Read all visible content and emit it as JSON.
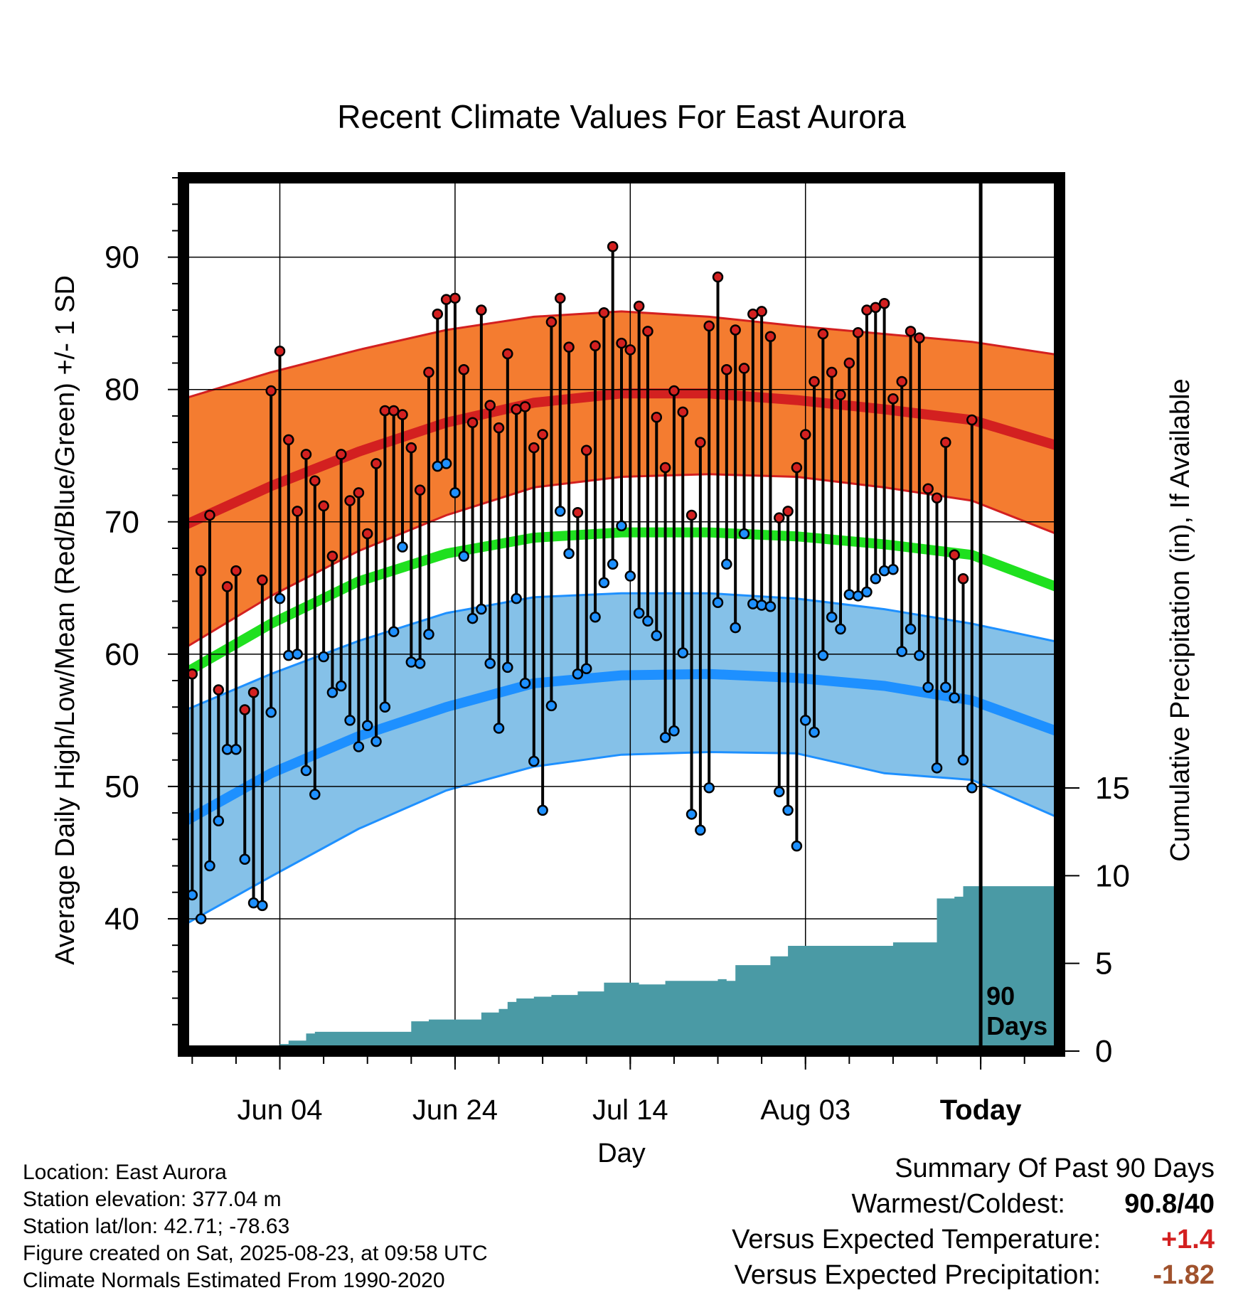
{
  "colors": {
    "high_band": "#f47c30",
    "high_band_edge": "#d32020",
    "high_mean": "#d32020",
    "low_band": "#85c1e8",
    "low_band_edge": "#1e90ff",
    "low_mean": "#1e90ff",
    "mean": "#1fe01f",
    "precip": "#4a9aa5",
    "high_dot": "#d32020",
    "low_dot": "#1e90ff",
    "positive": "#d32020",
    "negative": "#a0522d"
  },
  "chart_data": {
    "type": "line",
    "title": "Recent Climate Values For East Aurora",
    "xlabel": "Day",
    "ylabel": "Average Daily High/Low/Mean (Red/Blue/Green) +/- 1 SD",
    "y2label": "Cumulative Precipitation (in), If Available",
    "x_tick_labels": [
      "Jun 04",
      "Jun 24",
      "Jul 14",
      "Aug 03",
      "Today"
    ],
    "x_tick_days": [
      11,
      31,
      51,
      71,
      91
    ],
    "xlim": [
      0,
      100
    ],
    "ylim": [
      30,
      96
    ],
    "y_ticks": [
      40,
      50,
      60,
      70,
      80,
      90
    ],
    "y2lim": [
      0,
      18.5
    ],
    "y2_ticks": [
      0,
      5,
      10,
      15
    ],
    "today_day": 91,
    "today_label": "90\nDays",
    "grid": true,
    "normals": {
      "days": [
        0,
        10,
        20,
        30,
        40,
        50,
        60,
        70,
        80,
        90,
        100
      ],
      "high_mean": [
        69.7,
        72.7,
        75.3,
        77.5,
        79.0,
        79.7,
        79.7,
        79.2,
        78.5,
        77.7,
        75.7
      ],
      "high_upper": [
        79.3,
        81.3,
        83.0,
        84.5,
        85.5,
        85.9,
        85.5,
        84.8,
        84.2,
        83.6,
        82.6
      ],
      "high_lower": [
        60.4,
        64.4,
        67.8,
        70.5,
        72.6,
        73.4,
        73.6,
        73.4,
        72.6,
        71.6,
        69.0
      ],
      "mean": [
        58.5,
        62.3,
        65.5,
        67.6,
        68.8,
        69.2,
        69.2,
        68.9,
        68.3,
        67.5,
        65.0
      ],
      "low_mean": [
        47.3,
        51.0,
        53.8,
        56.0,
        57.8,
        58.4,
        58.5,
        58.2,
        57.6,
        56.5,
        54.1
      ],
      "low_upper": [
        55.7,
        58.5,
        61.0,
        63.1,
        64.3,
        64.6,
        64.6,
        64.2,
        63.4,
        62.3,
        60.9
      ],
      "low_lower": [
        39.5,
        43.2,
        46.8,
        49.7,
        51.5,
        52.4,
        52.6,
        52.5,
        51.0,
        50.5,
        47.6
      ]
    },
    "series": [
      {
        "name": "High",
        "x": [
          1,
          2,
          3,
          4,
          5,
          6,
          7,
          8,
          9,
          10,
          11,
          12,
          13,
          14,
          15,
          16,
          17,
          18,
          19,
          20,
          21,
          22,
          23,
          24,
          25,
          26,
          27,
          28,
          29,
          30,
          31,
          32,
          33,
          34,
          35,
          36,
          37,
          38,
          39,
          40,
          41,
          42,
          43,
          44,
          45,
          46,
          47,
          48,
          49,
          50,
          51,
          52,
          53,
          54,
          55,
          56,
          57,
          58,
          59,
          60,
          61,
          62,
          63,
          64,
          65,
          66,
          67,
          68,
          69,
          70,
          71,
          72,
          73,
          74,
          75,
          76,
          77,
          78,
          79,
          80,
          81,
          82,
          83,
          84,
          85,
          86,
          87,
          88,
          89,
          90
        ],
        "values": [
          58.5,
          66.3,
          70.5,
          57.3,
          65.1,
          66.3,
          55.8,
          57.1,
          65.6,
          79.9,
          82.9,
          76.2,
          70.8,
          75.1,
          73.1,
          71.2,
          67.4,
          75.1,
          71.6,
          72.2,
          69.1,
          74.4,
          78.4,
          78.4,
          78.1,
          75.6,
          72.4,
          81.3,
          85.7,
          86.8,
          86.9,
          81.5,
          77.5,
          86.0,
          78.8,
          77.1,
          82.7,
          78.5,
          78.7,
          75.6,
          76.6,
          85.1,
          86.9,
          83.2,
          70.7,
          75.4,
          83.3,
          85.8,
          90.8,
          83.5,
          83.0,
          86.3,
          84.4,
          77.9,
          74.1,
          79.9,
          78.3,
          70.5,
          76.0,
          84.8,
          88.5,
          81.5,
          84.5,
          81.6,
          85.7,
          85.9,
          84.0,
          70.3,
          70.8,
          74.1,
          76.6,
          80.6,
          84.2,
          81.3,
          79.6,
          82.0,
          84.3,
          86.0,
          86.2,
          86.5,
          79.3,
          80.6,
          84.4,
          83.9,
          72.5,
          71.8,
          76.0,
          67.5,
          65.7,
          77.7
        ]
      },
      {
        "name": "Low",
        "x": [
          1,
          2,
          3,
          4,
          5,
          6,
          7,
          8,
          9,
          10,
          11,
          12,
          13,
          14,
          15,
          16,
          17,
          18,
          19,
          20,
          21,
          22,
          23,
          24,
          25,
          26,
          27,
          28,
          29,
          30,
          31,
          32,
          33,
          34,
          35,
          36,
          37,
          38,
          39,
          40,
          41,
          42,
          43,
          44,
          45,
          46,
          47,
          48,
          49,
          50,
          51,
          52,
          53,
          54,
          55,
          56,
          57,
          58,
          59,
          60,
          61,
          62,
          63,
          64,
          65,
          66,
          67,
          68,
          69,
          70,
          71,
          72,
          73,
          74,
          75,
          76,
          77,
          78,
          79,
          80,
          81,
          82,
          83,
          84,
          85,
          86,
          87,
          88,
          89,
          90
        ],
        "values": [
          41.8,
          40.0,
          44.0,
          47.4,
          52.8,
          52.8,
          44.5,
          41.2,
          41.0,
          55.6,
          64.2,
          59.9,
          60.0,
          51.2,
          49.4,
          59.8,
          57.1,
          57.6,
          55.0,
          53.0,
          54.6,
          53.4,
          56.0,
          61.7,
          68.1,
          59.4,
          59.3,
          61.5,
          74.2,
          74.4,
          72.2,
          67.4,
          62.7,
          63.4,
          59.3,
          54.4,
          59.0,
          64.2,
          57.8,
          51.9,
          48.2,
          56.1,
          70.8,
          67.6,
          58.5,
          58.9,
          62.8,
          65.4,
          66.8,
          69.7,
          65.9,
          63.1,
          62.5,
          61.4,
          53.7,
          54.2,
          60.1,
          47.9,
          46.7,
          49.9,
          63.9,
          66.8,
          62.0,
          69.1,
          63.8,
          63.7,
          63.6,
          49.6,
          48.2,
          45.5,
          55.0,
          54.1,
          59.9,
          62.8,
          61.9,
          64.5,
          64.4,
          64.7,
          65.7,
          66.3,
          66.4,
          60.2,
          61.9,
          59.9,
          57.5,
          51.4,
          57.5,
          56.7,
          52.0,
          49.9
        ]
      },
      {
        "name": "Cumulative Precipitation",
        "x": [
          11,
          12,
          14,
          15,
          24,
          26,
          28,
          33,
          34,
          36,
          37,
          38,
          40,
          41,
          42,
          45,
          46,
          48,
          49,
          52,
          55,
          58,
          61,
          62,
          63,
          64,
          65,
          66,
          67,
          68,
          69,
          70,
          80,
          81,
          84,
          85,
          86,
          87,
          88,
          89,
          90,
          91,
          100
        ],
        "values": [
          0.4,
          0.6,
          1.0,
          1.1,
          1.1,
          1.7,
          1.8,
          1.8,
          2.2,
          2.4,
          2.8,
          3.0,
          3.1,
          3.1,
          3.2,
          3.4,
          3.4,
          3.9,
          3.9,
          3.8,
          4.0,
          4.0,
          4.1,
          4.0,
          4.9,
          4.9,
          4.9,
          4.9,
          5.4,
          5.4,
          6.0,
          6.0,
          6.0,
          6.2,
          6.2,
          6.2,
          8.7,
          8.7,
          8.8,
          9.4,
          9.4,
          9.4,
          9.4
        ]
      }
    ]
  },
  "info": {
    "location": "Location: East Aurora",
    "elevation": "Station elevation: 377.04 m",
    "latlon": "Station lat/lon: 42.71; -78.63",
    "created": "Figure created on Sat, 2025-08-23, at 09:58 UTC",
    "normals": "Climate Normals Estimated From 1990-2020"
  },
  "summary": {
    "title": "Summary Of Past 90 Days",
    "warmest_label": "Warmest/Coldest:",
    "warmest_value": "90.8/40",
    "temp_label": "Versus Expected Temperature:",
    "temp_value": "+1.4",
    "precip_label": "Versus Expected Precipitation:",
    "precip_value": "-1.82"
  }
}
